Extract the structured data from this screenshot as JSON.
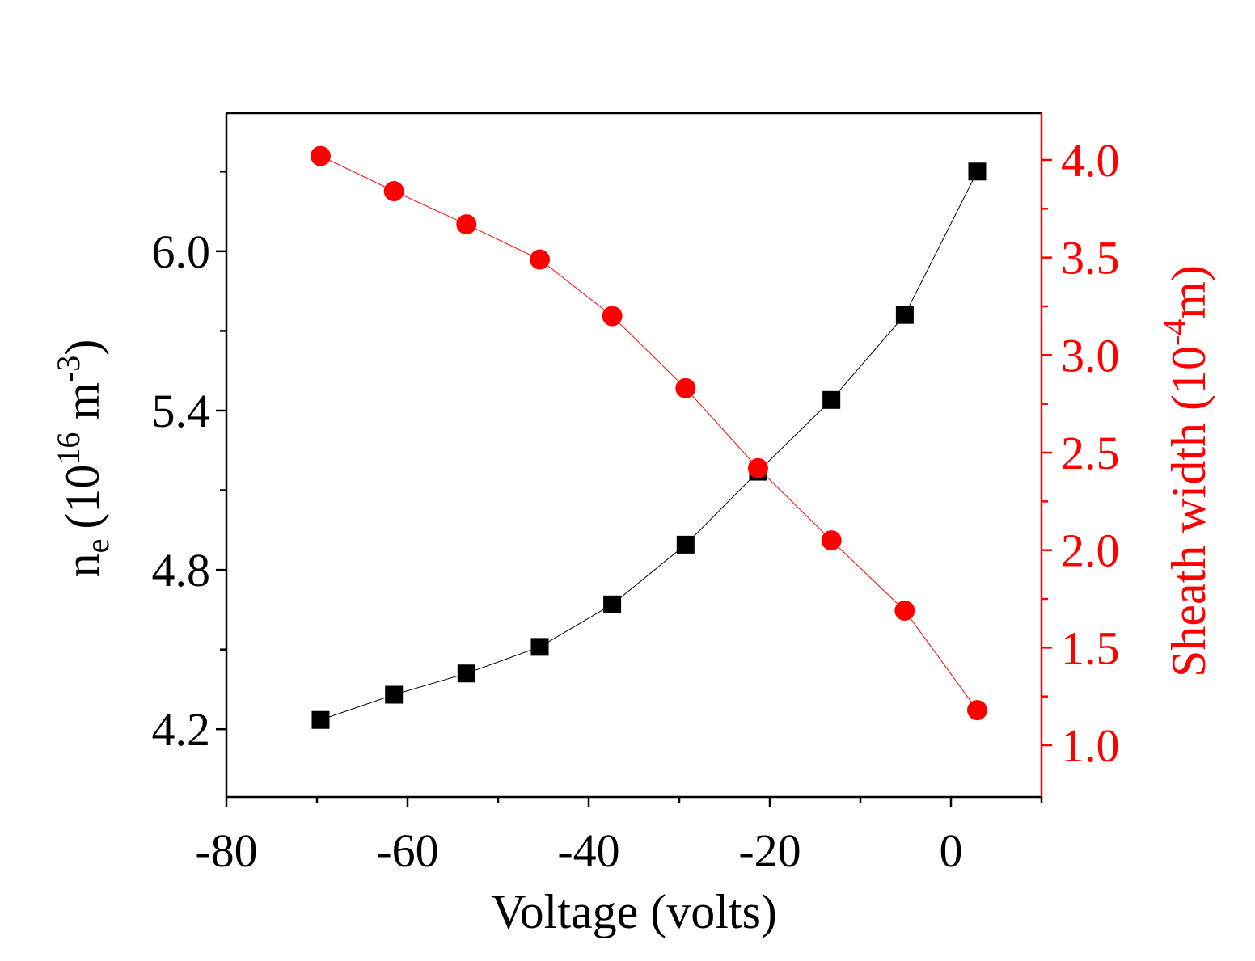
{
  "chart_data": {
    "type": "line",
    "xlabel": "Voltage (volts)",
    "x_range": [
      -80,
      10
    ],
    "x_major_ticks": [
      -80,
      -60,
      -40,
      -20,
      0
    ],
    "x_minor_ticks": [
      -70,
      -50,
      -30,
      -10,
      10
    ],
    "x_tick_labels": [
      "-80",
      "-60",
      "-40",
      "-20",
      "0"
    ],
    "left_axis": {
      "label_parts": {
        "base": "n",
        "subscript": "e",
        "open": "(10",
        "exponent": "16",
        "unit": " m",
        "unit_exponent": "-3",
        "close": ")"
      },
      "range": [
        3.945,
        6.52
      ],
      "major_ticks": [
        4.2,
        4.8,
        5.4,
        6.0
      ],
      "minor_ticks": [
        4.5,
        5.1,
        5.7,
        6.3
      ],
      "tick_labels": [
        "4.2",
        "4.8",
        "5.4",
        "6.0"
      ],
      "color": "#000000"
    },
    "right_axis": {
      "label_parts": {
        "title": "Sheath width (10",
        "exponent": "-4",
        "unit": "m)"
      },
      "range": [
        0.735,
        4.24
      ],
      "major_ticks": [
        1.0,
        1.5,
        2.0,
        2.5,
        3.0,
        3.5,
        4.0
      ],
      "minor_ticks": [
        1.25,
        1.75,
        2.25,
        2.75,
        3.25,
        3.75
      ],
      "tick_labels": [
        "1.0",
        "1.5",
        "2.0",
        "2.5",
        "3.0",
        "3.5",
        "4.0"
      ],
      "color": "#ff0000"
    },
    "series": [
      {
        "name": "n_e",
        "axis": "left",
        "color": "#000000",
        "marker": "square",
        "x": [
          -69.6,
          -61.5,
          -53.5,
          -45.4,
          -37.4,
          -29.3,
          -21.3,
          -13.2,
          -5.1,
          2.9
        ],
        "y": [
          4.235,
          4.33,
          4.41,
          4.51,
          4.67,
          4.895,
          5.17,
          5.44,
          5.76,
          6.3
        ]
      },
      {
        "name": "Sheath width",
        "axis": "right",
        "color": "#ff0000",
        "marker": "circle",
        "x": [
          -69.6,
          -61.5,
          -53.5,
          -45.4,
          -37.4,
          -29.3,
          -21.3,
          -13.2,
          -5.1,
          2.9
        ],
        "y": [
          4.02,
          3.84,
          3.67,
          3.49,
          3.2,
          2.83,
          2.42,
          2.05,
          1.69,
          1.18
        ]
      }
    ],
    "grid": false,
    "legend": "none"
  }
}
